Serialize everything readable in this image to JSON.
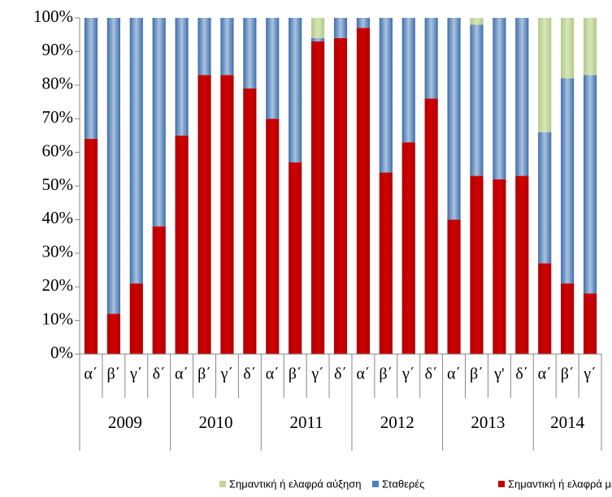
{
  "chart_data": {
    "type": "stacked_bar",
    "groups": [
      {
        "name": "2009",
        "categories": [
          "α΄",
          "β΄",
          "γ΄",
          "δ΄"
        ]
      },
      {
        "name": "2010",
        "categories": [
          "α΄",
          "β΄",
          "γ΄",
          "δ΄"
        ]
      },
      {
        "name": "2011",
        "categories": [
          "α΄",
          "β΄",
          "γ΄",
          "δ΄"
        ]
      },
      {
        "name": "2012",
        "categories": [
          "α΄",
          "β΄",
          "γ΄",
          "δ΄"
        ]
      },
      {
        "name": "2013",
        "categories": [
          "α΄",
          "β΄",
          "γ'",
          "δ΄"
        ]
      },
      {
        "name": "2014",
        "categories": [
          "α΄",
          "β΄",
          "γ΄"
        ]
      }
    ],
    "series": [
      {
        "name": "Σημαντική ή ελαφρά μείωση",
        "color": "#c00000",
        "values": [
          64,
          12,
          21,
          38,
          65,
          83,
          83,
          79,
          70,
          57,
          93,
          94,
          97,
          54,
          63,
          76,
          40,
          53,
          52,
          53,
          27,
          21,
          18
        ]
      },
      {
        "name": "Σταθερές",
        "color": "#4f81bd",
        "values": [
          36,
          88,
          79,
          62,
          35,
          17,
          17,
          21,
          30,
          43,
          1,
          6,
          3,
          46,
          37,
          24,
          60,
          45,
          48,
          47,
          39,
          61,
          65
        ]
      },
      {
        "name": "Σημαντική ή ελαφρά αύξηση",
        "color": "#c3d69b",
        "values": [
          0,
          0,
          0,
          0,
          0,
          0,
          0,
          0,
          0,
          0,
          6,
          0,
          0,
          0,
          0,
          0,
          0,
          2,
          0,
          0,
          34,
          18,
          17
        ]
      }
    ],
    "ylim": [
      0,
      100
    ],
    "yticks": [
      {
        "value": 0,
        "label": "0%"
      },
      {
        "value": 10,
        "label": "10%"
      },
      {
        "value": 20,
        "label": "20%"
      },
      {
        "value": 30,
        "label": "30%"
      },
      {
        "value": 40,
        "label": "40%"
      },
      {
        "value": 50,
        "label": "50%"
      },
      {
        "value": 60,
        "label": "60%"
      },
      {
        "value": 70,
        "label": "70%"
      },
      {
        "value": 80,
        "label": "80%"
      },
      {
        "value": 90,
        "label": "90%"
      },
      {
        "value": 100,
        "label": "100%"
      }
    ],
    "legend": "bottom"
  }
}
